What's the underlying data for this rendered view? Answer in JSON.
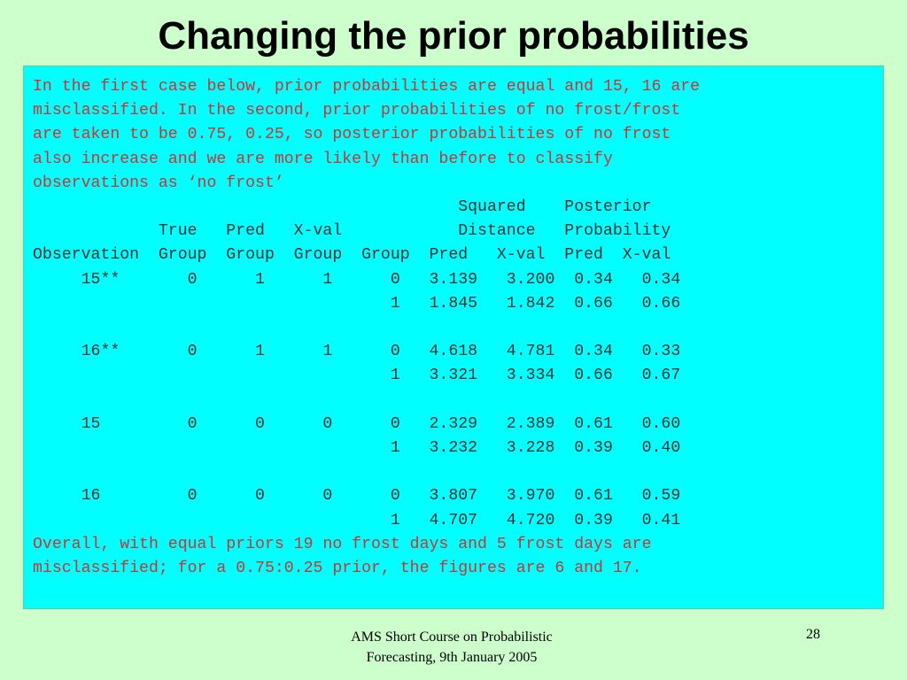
{
  "slide": {
    "title": "Changing the prior probabilities",
    "intro_lines": [
      "In the first case below, prior probabilities are equal and 15, 16 are",
      "misclassified. In the second, prior probabilities of no frost/frost",
      "are taken to be 0.75, 0.25, so posterior probabilities of no frost",
      "also increase and we are more likely than before to classify",
      "observations as ‘no frost’"
    ],
    "table_lines": [
      "                                            Squared    Posterior",
      "             True   Pred   X-val            Distance   Probability",
      "Observation  Group  Group  Group  Group  Pred   X-val  Pred  X-val",
      "     15**       0      1      1      0   3.139   3.200  0.34   0.34",
      "                                     1   1.845   1.842  0.66   0.66",
      "",
      "     16**       0      1      1      0   4.618   4.781  0.34   0.33",
      "                                     1   3.321   3.334  0.66   0.67",
      "",
      "     15         0      0      0      0   2.329   2.389  0.61   0.60",
      "                                     1   3.232   3.228  0.39   0.40",
      "",
      "     16         0      0      0      0   3.807   3.970  0.61   0.59",
      "                                     1   4.707   4.720  0.39   0.41"
    ],
    "summary_lines": [
      "Overall, with equal priors 19 no frost days and 5 frost days are",
      "misclassified; for a 0.75:0.25 prior, the figures are 6 and 17."
    ],
    "footer_line1": "AMS Short Course on Probabilistic",
    "footer_line2": "Forecasting, 9th January 2005",
    "page_number": "28"
  }
}
